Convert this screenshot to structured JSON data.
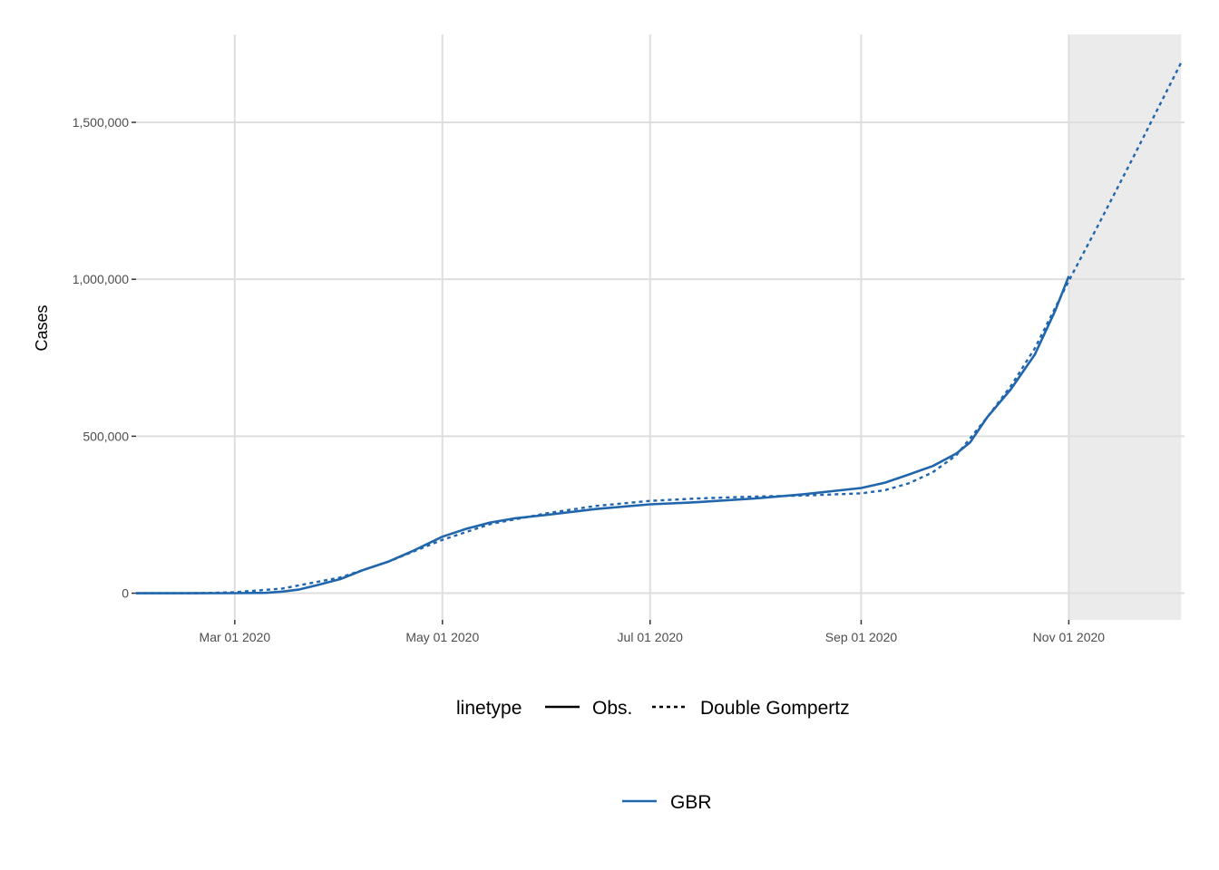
{
  "chart_data": {
    "type": "line",
    "title": "",
    "xlabel": "",
    "ylabel": "Cases",
    "x_axis": {
      "type": "date",
      "range": [
        "2020-02-01",
        "2020-12-05"
      ],
      "ticks": [
        {
          "date": "2020-03-01",
          "label": "Mar 01 2020"
        },
        {
          "date": "2020-05-01",
          "label": "May 01 2020"
        },
        {
          "date": "2020-07-01",
          "label": "Jul 01 2020"
        },
        {
          "date": "2020-09-01",
          "label": "Sep 01 2020"
        },
        {
          "date": "2020-11-01",
          "label": "Nov 01 2020"
        }
      ]
    },
    "y_axis": {
      "range": [
        -85000,
        1780000
      ],
      "ticks": [
        {
          "value": 0,
          "label": "0"
        },
        {
          "value": 500000,
          "label": "500,000"
        },
        {
          "value": 1000000,
          "label": "1,000,000"
        },
        {
          "value": 1500000,
          "label": "1,500,000"
        }
      ]
    },
    "grid": true,
    "forecast_region": {
      "start": "2020-11-01",
      "end": "2020-12-04",
      "color": "#ebebeb"
    },
    "colors": {
      "series": "#2166ac",
      "grid": "#dedede",
      "axis_text": "#4d4d4d"
    },
    "series": [
      {
        "linetype": "Obs.",
        "country": "GBR",
        "dash": "solid",
        "points": [
          {
            "x": "2020-02-01",
            "y": 0
          },
          {
            "x": "2020-02-15",
            "y": 0
          },
          {
            "x": "2020-03-01",
            "y": 100
          },
          {
            "x": "2020-03-10",
            "y": 1000
          },
          {
            "x": "2020-03-15",
            "y": 5000
          },
          {
            "x": "2020-03-20",
            "y": 12000
          },
          {
            "x": "2020-03-25",
            "y": 25000
          },
          {
            "x": "2020-04-01",
            "y": 45000
          },
          {
            "x": "2020-04-08",
            "y": 75000
          },
          {
            "x": "2020-04-15",
            "y": 100000
          },
          {
            "x": "2020-04-22",
            "y": 133000
          },
          {
            "x": "2020-05-01",
            "y": 180000
          },
          {
            "x": "2020-05-08",
            "y": 205000
          },
          {
            "x": "2020-05-15",
            "y": 225000
          },
          {
            "x": "2020-05-22",
            "y": 238000
          },
          {
            "x": "2020-06-01",
            "y": 250000
          },
          {
            "x": "2020-06-15",
            "y": 268000
          },
          {
            "x": "2020-07-01",
            "y": 283000
          },
          {
            "x": "2020-07-15",
            "y": 290000
          },
          {
            "x": "2020-08-01",
            "y": 302000
          },
          {
            "x": "2020-08-15",
            "y": 315000
          },
          {
            "x": "2020-09-01",
            "y": 335000
          },
          {
            "x": "2020-09-08",
            "y": 352000
          },
          {
            "x": "2020-09-15",
            "y": 378000
          },
          {
            "x": "2020-09-22",
            "y": 405000
          },
          {
            "x": "2020-09-29",
            "y": 445000
          },
          {
            "x": "2020-10-03",
            "y": 480000
          },
          {
            "x": "2020-10-08",
            "y": 560000
          },
          {
            "x": "2020-10-15",
            "y": 650000
          },
          {
            "x": "2020-10-22",
            "y": 760000
          },
          {
            "x": "2020-10-28",
            "y": 900000
          },
          {
            "x": "2020-11-01",
            "y": 1010000
          }
        ]
      },
      {
        "linetype": "Double Gompertz",
        "country": "GBR",
        "dash": "dotted",
        "points": [
          {
            "x": "2020-02-01",
            "y": 0
          },
          {
            "x": "2020-02-20",
            "y": 200
          },
          {
            "x": "2020-03-01",
            "y": 3000
          },
          {
            "x": "2020-03-15",
            "y": 15000
          },
          {
            "x": "2020-04-01",
            "y": 50000
          },
          {
            "x": "2020-04-15",
            "y": 100000
          },
          {
            "x": "2020-05-01",
            "y": 170000
          },
          {
            "x": "2020-05-15",
            "y": 220000
          },
          {
            "x": "2020-06-01",
            "y": 255000
          },
          {
            "x": "2020-06-15",
            "y": 278000
          },
          {
            "x": "2020-07-01",
            "y": 294000
          },
          {
            "x": "2020-07-15",
            "y": 302000
          },
          {
            "x": "2020-08-01",
            "y": 308000
          },
          {
            "x": "2020-08-15",
            "y": 311000
          },
          {
            "x": "2020-09-01",
            "y": 318000
          },
          {
            "x": "2020-09-08",
            "y": 328000
          },
          {
            "x": "2020-09-15",
            "y": 350000
          },
          {
            "x": "2020-09-22",
            "y": 385000
          },
          {
            "x": "2020-09-29",
            "y": 440000
          },
          {
            "x": "2020-10-08",
            "y": 560000
          },
          {
            "x": "2020-10-15",
            "y": 660000
          },
          {
            "x": "2020-10-22",
            "y": 780000
          },
          {
            "x": "2020-11-01",
            "y": 995000
          },
          {
            "x": "2020-11-10",
            "y": 1180000
          },
          {
            "x": "2020-11-20",
            "y": 1390000
          },
          {
            "x": "2020-12-04",
            "y": 1690000
          }
        ]
      }
    ],
    "legend": {
      "position": "bottom",
      "linetype_title": "linetype",
      "linetype_items": [
        {
          "label": "Obs.",
          "dash": "solid"
        },
        {
          "label": "Double Gompertz",
          "dash": "dotted"
        }
      ],
      "color_items": [
        {
          "label": "GBR",
          "color": "#2166ac"
        }
      ]
    }
  }
}
